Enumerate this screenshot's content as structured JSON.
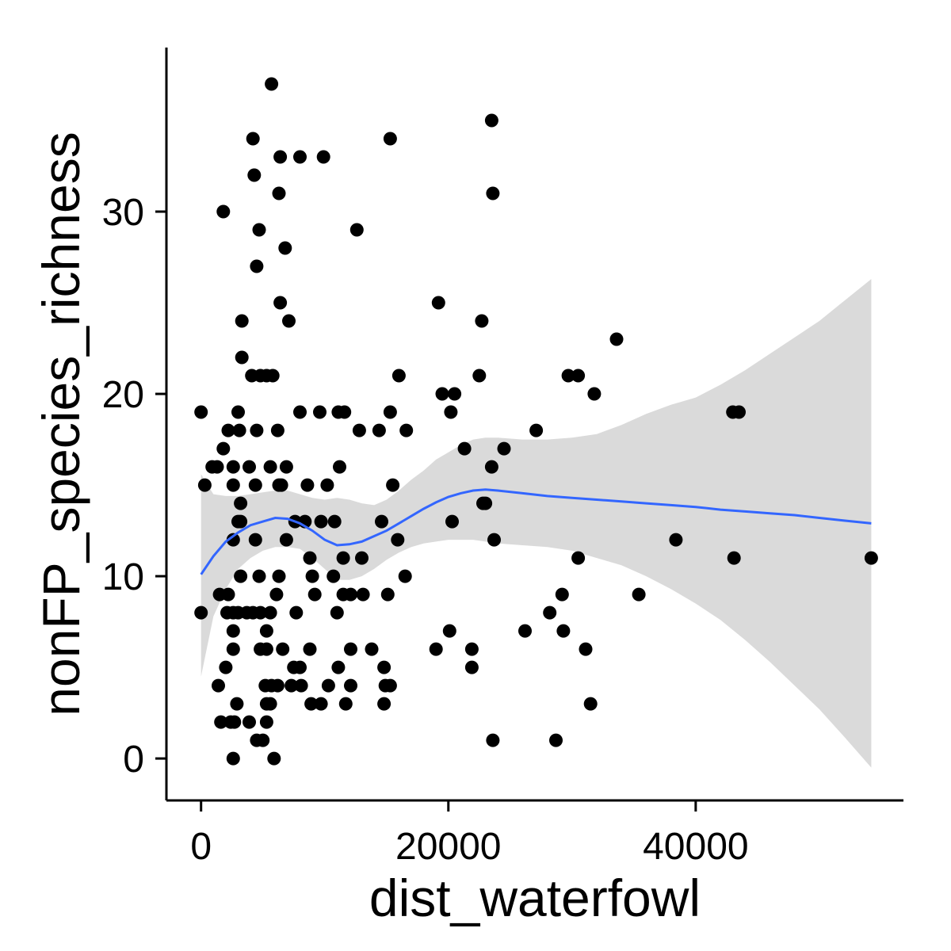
{
  "chart_data": {
    "type": "scatter",
    "xlabel": "dist_waterfowl",
    "ylabel": "nonFP_species_richness",
    "xlim": [
      -2800,
      56800
    ],
    "ylim": [
      -2.3,
      39.0
    ],
    "x_ticks": [
      0,
      20000,
      40000
    ],
    "x_tick_labels": [
      "0",
      "20000",
      "40000"
    ],
    "y_ticks": [
      0,
      10,
      20,
      30
    ],
    "y_tick_labels": [
      "0",
      "10",
      "20",
      "30"
    ],
    "grid": false,
    "legend": "none",
    "colors": {
      "points": "#000000",
      "smooth_line": "#3366ff",
      "confidence_band": "#d6d6d6",
      "axis": "#000000"
    },
    "points": [
      [
        5700,
        37
      ],
      [
        23500,
        35
      ],
      [
        4200,
        34
      ],
      [
        15300,
        34
      ],
      [
        6400,
        33
      ],
      [
        8000,
        33
      ],
      [
        9900,
        33
      ],
      [
        4300,
        32
      ],
      [
        6300,
        31
      ],
      [
        23600,
        31
      ],
      [
        1800,
        30
      ],
      [
        4700,
        29
      ],
      [
        12600,
        29
      ],
      [
        6800,
        28
      ],
      [
        4500,
        27
      ],
      [
        6400,
        25
      ],
      [
        19200,
        25
      ],
      [
        22700,
        24
      ],
      [
        3300,
        24
      ],
      [
        7100,
        24
      ],
      [
        33600,
        23
      ],
      [
        3300,
        22
      ],
      [
        4100,
        21
      ],
      [
        4800,
        21
      ],
      [
        5300,
        21
      ],
      [
        5800,
        21
      ],
      [
        16000,
        21
      ],
      [
        22500,
        21
      ],
      [
        29700,
        21
      ],
      [
        30500,
        21
      ],
      [
        19500,
        20
      ],
      [
        20500,
        20
      ],
      [
        31800,
        20
      ],
      [
        0,
        19
      ],
      [
        3000,
        19
      ],
      [
        8000,
        19
      ],
      [
        9600,
        19
      ],
      [
        11100,
        19
      ],
      [
        11600,
        19
      ],
      [
        15300,
        19
      ],
      [
        20200,
        19
      ],
      [
        43000,
        19
      ],
      [
        43500,
        19
      ],
      [
        2200,
        18
      ],
      [
        3100,
        18
      ],
      [
        4500,
        18
      ],
      [
        6200,
        18
      ],
      [
        12800,
        18
      ],
      [
        14400,
        18
      ],
      [
        16600,
        18
      ],
      [
        27100,
        18
      ],
      [
        1800,
        17
      ],
      [
        21300,
        17
      ],
      [
        24500,
        17
      ],
      [
        900,
        16
      ],
      [
        1300,
        16
      ],
      [
        2600,
        16
      ],
      [
        3900,
        16
      ],
      [
        5600,
        16
      ],
      [
        6900,
        16
      ],
      [
        11200,
        16
      ],
      [
        23500,
        16
      ],
      [
        300,
        15
      ],
      [
        2600,
        15
      ],
      [
        4400,
        15
      ],
      [
        6300,
        15
      ],
      [
        6500,
        15
      ],
      [
        8600,
        15
      ],
      [
        10200,
        15
      ],
      [
        15500,
        15
      ],
      [
        3200,
        14
      ],
      [
        22800,
        14
      ],
      [
        23000,
        14
      ],
      [
        3000,
        13
      ],
      [
        3200,
        13
      ],
      [
        7600,
        13
      ],
      [
        8400,
        13
      ],
      [
        9700,
        13
      ],
      [
        10800,
        13
      ],
      [
        14600,
        13
      ],
      [
        20300,
        13
      ],
      [
        2600,
        12
      ],
      [
        4400,
        12
      ],
      [
        6900,
        12
      ],
      [
        15900,
        12
      ],
      [
        23700,
        12
      ],
      [
        38400,
        12
      ],
      [
        8800,
        11
      ],
      [
        11500,
        11
      ],
      [
        13000,
        11
      ],
      [
        30500,
        11
      ],
      [
        43100,
        11
      ],
      [
        54200,
        11
      ],
      [
        3200,
        10
      ],
      [
        4700,
        10
      ],
      [
        6300,
        10
      ],
      [
        9000,
        10
      ],
      [
        10700,
        10
      ],
      [
        16500,
        10
      ],
      [
        1500,
        9
      ],
      [
        2200,
        9
      ],
      [
        6100,
        9
      ],
      [
        9200,
        9
      ],
      [
        11500,
        9
      ],
      [
        12100,
        9
      ],
      [
        13100,
        9
      ],
      [
        15100,
        9
      ],
      [
        29200,
        9
      ],
      [
        35400,
        9
      ],
      [
        0,
        8
      ],
      [
        2100,
        8
      ],
      [
        2600,
        8
      ],
      [
        3000,
        8
      ],
      [
        3700,
        8
      ],
      [
        4200,
        8
      ],
      [
        4800,
        8
      ],
      [
        5600,
        8
      ],
      [
        7700,
        8
      ],
      [
        11000,
        8
      ],
      [
        28200,
        8
      ],
      [
        2600,
        7
      ],
      [
        5300,
        7
      ],
      [
        20100,
        7
      ],
      [
        26200,
        7
      ],
      [
        29300,
        7
      ],
      [
        2600,
        6
      ],
      [
        4800,
        6
      ],
      [
        5300,
        6
      ],
      [
        6600,
        6
      ],
      [
        8800,
        6
      ],
      [
        12100,
        6
      ],
      [
        13800,
        6
      ],
      [
        19000,
        6
      ],
      [
        21900,
        6
      ],
      [
        31100,
        6
      ],
      [
        2000,
        5
      ],
      [
        7500,
        5
      ],
      [
        8000,
        5
      ],
      [
        11100,
        5
      ],
      [
        14800,
        5
      ],
      [
        21900,
        5
      ],
      [
        1400,
        4
      ],
      [
        5200,
        4
      ],
      [
        5700,
        4
      ],
      [
        6200,
        4
      ],
      [
        7300,
        4
      ],
      [
        8100,
        4
      ],
      [
        10300,
        4
      ],
      [
        12100,
        4
      ],
      [
        14900,
        4
      ],
      [
        15300,
        4
      ],
      [
        2900,
        3
      ],
      [
        5300,
        3
      ],
      [
        5600,
        3
      ],
      [
        8900,
        3
      ],
      [
        9700,
        3
      ],
      [
        11700,
        3
      ],
      [
        14800,
        3
      ],
      [
        31500,
        3
      ],
      [
        1600,
        2
      ],
      [
        2400,
        2
      ],
      [
        2700,
        2
      ],
      [
        3900,
        2
      ],
      [
        5300,
        2
      ],
      [
        4500,
        1
      ],
      [
        5000,
        1
      ],
      [
        23600,
        1
      ],
      [
        28700,
        1
      ],
      [
        2600,
        0
      ],
      [
        5900,
        0
      ]
    ],
    "smooth_line": [
      [
        0,
        10.1
      ],
      [
        1000,
        11.1
      ],
      [
        2000,
        11.9
      ],
      [
        3000,
        12.4
      ],
      [
        4000,
        12.8
      ],
      [
        5000,
        13.0
      ],
      [
        6000,
        13.2
      ],
      [
        7000,
        13.15
      ],
      [
        8000,
        12.9
      ],
      [
        9000,
        12.5
      ],
      [
        10000,
        12.0
      ],
      [
        11000,
        11.7
      ],
      [
        12000,
        11.75
      ],
      [
        13000,
        11.9
      ],
      [
        14000,
        12.2
      ],
      [
        15000,
        12.5
      ],
      [
        16000,
        12.9
      ],
      [
        17000,
        13.3
      ],
      [
        18000,
        13.7
      ],
      [
        19000,
        14.05
      ],
      [
        20000,
        14.35
      ],
      [
        21000,
        14.55
      ],
      [
        22000,
        14.7
      ],
      [
        23000,
        14.75
      ],
      [
        24000,
        14.7
      ],
      [
        26000,
        14.55
      ],
      [
        28000,
        14.4
      ],
      [
        30000,
        14.3
      ],
      [
        32000,
        14.2
      ],
      [
        34000,
        14.1
      ],
      [
        36000,
        14.0
      ],
      [
        38000,
        13.9
      ],
      [
        40000,
        13.8
      ],
      [
        42000,
        13.65
      ],
      [
        44000,
        13.55
      ],
      [
        46000,
        13.45
      ],
      [
        48000,
        13.35
      ],
      [
        50000,
        13.2
      ],
      [
        52000,
        13.05
      ],
      [
        54200,
        12.9
      ]
    ],
    "confidence_band": [
      [
        0,
        4.5,
        15.6
      ],
      [
        1000,
        7.8,
        14.5
      ],
      [
        2000,
        9.3,
        14.4
      ],
      [
        3000,
        10.4,
        14.4
      ],
      [
        4000,
        11.0,
        14.5
      ],
      [
        5000,
        11.4,
        14.6
      ],
      [
        6000,
        11.6,
        14.7
      ],
      [
        7000,
        11.6,
        14.7
      ],
      [
        8000,
        11.5,
        14.5
      ],
      [
        9000,
        11.0,
        14.3
      ],
      [
        10000,
        10.4,
        14.2
      ],
      [
        11000,
        9.8,
        14.3
      ],
      [
        12000,
        9.8,
        14.2
      ],
      [
        13000,
        10.0,
        14.0
      ],
      [
        14000,
        10.4,
        13.9
      ],
      [
        15000,
        10.9,
        14.2
      ],
      [
        16000,
        11.3,
        14.7
      ],
      [
        17000,
        11.6,
        15.3
      ],
      [
        18000,
        11.8,
        15.8
      ],
      [
        19000,
        11.9,
        16.4
      ],
      [
        20000,
        12.0,
        16.8
      ],
      [
        21000,
        12.0,
        17.2
      ],
      [
        22000,
        12.0,
        17.5
      ],
      [
        23000,
        11.9,
        17.6
      ],
      [
        24000,
        11.8,
        17.6
      ],
      [
        26000,
        11.7,
        17.5
      ],
      [
        28000,
        11.6,
        17.5
      ],
      [
        30000,
        11.4,
        17.6
      ],
      [
        32000,
        11.0,
        17.8
      ],
      [
        34000,
        10.6,
        18.3
      ],
      [
        36000,
        10.0,
        18.9
      ],
      [
        38000,
        9.3,
        19.4
      ],
      [
        40000,
        8.5,
        19.8
      ],
      [
        42000,
        7.6,
        20.5
      ],
      [
        44000,
        6.5,
        21.3
      ],
      [
        46000,
        5.3,
        22.2
      ],
      [
        48000,
        4.0,
        23.1
      ],
      [
        50000,
        2.7,
        24.0
      ],
      [
        52000,
        1.2,
        25.1
      ],
      [
        54200,
        -0.5,
        26.3
      ]
    ]
  }
}
